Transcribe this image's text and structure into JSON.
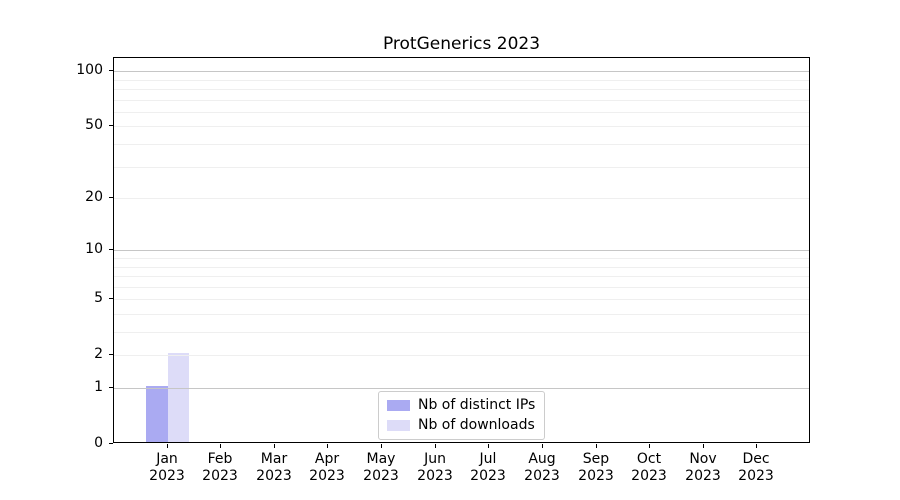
{
  "figure": {
    "background": "#ffffff"
  },
  "chart_data": {
    "type": "bar",
    "title": "ProtGenerics 2023",
    "categories": [
      "Jan 2023",
      "Feb 2023",
      "Mar 2023",
      "Apr 2023",
      "May 2023",
      "Jun 2023",
      "Jul 2023",
      "Aug 2023",
      "Sep 2023",
      "Oct 2023",
      "Nov 2023",
      "Dec 2023"
    ],
    "series": [
      {
        "name": "Nb of distinct IPs",
        "color": "#aaaaf2",
        "values": [
          1,
          0,
          0,
          0,
          0,
          0,
          0,
          0,
          0,
          0,
          0,
          0
        ]
      },
      {
        "name": "Nb of downloads",
        "color": "#dddcf8",
        "values": [
          2,
          0,
          0,
          0,
          0,
          0,
          0,
          0,
          0,
          0,
          0,
          0
        ]
      }
    ],
    "xlabel": "",
    "ylabel": "",
    "y_axis": {
      "scale": "log10(value+1)",
      "ticks": [
        0,
        1,
        2,
        5,
        10,
        20,
        50,
        100
      ],
      "ylim": [
        0,
        118
      ],
      "major_gridline_values": [
        1,
        10,
        100
      ],
      "minor_gridline_values": [
        2,
        3,
        4,
        5,
        6,
        7,
        8,
        9,
        20,
        30,
        40,
        50,
        60,
        70,
        80,
        90
      ]
    },
    "x_axis": {
      "xlim_units": [
        -1,
        12
      ],
      "bar_width_units": 0.4
    },
    "legend": {
      "position": "lower center"
    },
    "grid": true
  },
  "styles": {
    "major_grid_color": "#c6c6c6",
    "minor_grid_color": "#efefef",
    "spine_color": "#000000",
    "legend_border_color": "#cccccc",
    "text_color": "#000000"
  }
}
